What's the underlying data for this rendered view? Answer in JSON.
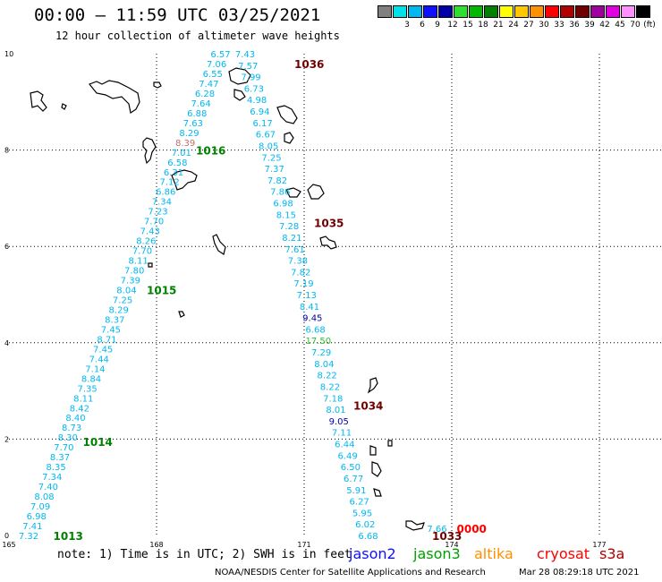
{
  "title": "00:00 – 11:59 UTC 03/25/2021",
  "subtitle": "12 hour collection of altimeter wave heights",
  "legend": {
    "unit": "(ft)",
    "bins": [
      {
        "label": "",
        "color": "#808080"
      },
      {
        "label": "3",
        "color": "#00e0e8"
      },
      {
        "label": "6",
        "color": "#00b8f0"
      },
      {
        "label": "9",
        "color": "#1010ff"
      },
      {
        "label": "12",
        "color": "#0000a8"
      },
      {
        "label": "15",
        "color": "#30e030"
      },
      {
        "label": "18",
        "color": "#00b800"
      },
      {
        "label": "21",
        "color": "#008000"
      },
      {
        "label": "24",
        "color": "#ffff00"
      },
      {
        "label": "27",
        "color": "#ffc800"
      },
      {
        "label": "30",
        "color": "#ff9000"
      },
      {
        "label": "33",
        "color": "#ff0000"
      },
      {
        "label": "36",
        "color": "#b00000"
      },
      {
        "label": "39",
        "color": "#700000"
      },
      {
        "label": "42",
        "color": "#a000a0"
      },
      {
        "label": "45",
        "color": "#e000e0"
      },
      {
        "label": "70",
        "color": "#ff90ff"
      },
      {
        "label": "",
        "color": "#000000"
      }
    ]
  },
  "chart_data": {
    "type": "scatter",
    "xlim": [
      165,
      179
    ],
    "ylim": [
      0,
      10
    ],
    "x_ticks": [
      "165",
      "168",
      "171",
      "174",
      "177"
    ],
    "y_ticks": [
      "0",
      "2",
      "4",
      "6",
      "8",
      "10"
    ],
    "tracks": [
      {
        "name": "track-west",
        "satellite": "jason3",
        "color": "#00b8f0",
        "x_start": 165.4,
        "y_start": 0.0,
        "x_end": 169.3,
        "y_end": 10.0,
        "swh_ft": [
          "7.32",
          "7.41",
          "6.98",
          "7.09",
          "8.08",
          "7.40",
          "7.34",
          "8.35",
          "8.37",
          "7.70",
          "8.30",
          "8.73",
          "8.40",
          "8.42",
          "8.11",
          "7.35",
          "8.84",
          "7.14",
          "7.44",
          "7.45",
          "8.71",
          "7.45",
          "8.37",
          "8.29",
          "7.25",
          "8.04",
          "7.39",
          "7.80",
          "8.11",
          "7.70",
          "8.26",
          "7.43",
          "7.70",
          "7.23",
          "7.34",
          "6.86",
          "7.12",
          "6.31",
          "6.58",
          "7.01",
          "8.39",
          "8.29",
          "7.63",
          "6.88",
          "7.64",
          "6.28",
          "7.47",
          "6.55",
          "7.06",
          "6.57"
        ],
        "highlight": {
          "index": 40,
          "color": "#c07070"
        }
      },
      {
        "name": "track-east",
        "satellite": "jason3",
        "color": "#00b8f0",
        "x_start": 169.8,
        "y_start": 10.0,
        "x_end": 172.3,
        "y_end": 0.0,
        "swh_ft": [
          "7.43",
          "7.57",
          "7.99",
          "6.73",
          "4.98",
          "6.94",
          "6.17",
          "6.67",
          "8.05",
          "7.25",
          "7.37",
          "7.82",
          "7.86",
          "6.98",
          "8.15",
          "7.28",
          "8.21",
          "7.61",
          "7.38",
          "7.82",
          "7.19",
          "7.13",
          "8.41",
          "9.45",
          "6.68",
          "17.50",
          "7.29",
          "8.04",
          "8.22",
          "8.22",
          "7.18",
          "8.01",
          "9.05",
          "7.11",
          "6.44",
          "6.49",
          "6.50",
          "6.77",
          "5.91",
          "6.27",
          "5.95",
          "6.02",
          "6.68"
        ],
        "special": {
          "23": "#0000a8",
          "25": "#30c030",
          "32": "#0000a8"
        }
      },
      {
        "name": "track-short",
        "satellite": "jason3",
        "color": "#00b8f0",
        "x_start": 173.7,
        "y_start": 0.15,
        "x_end": 174.0,
        "y_end": 0.15,
        "swh_ft": [
          "7.66"
        ]
      }
    ],
    "cycle_labels": [
      {
        "text": "1036",
        "x": 170.8,
        "y": 9.8,
        "color": "#700000"
      },
      {
        "text": "1016",
        "x": 168.8,
        "y": 8.0,
        "color": "#008000"
      },
      {
        "text": "1035",
        "x": 171.2,
        "y": 6.5,
        "color": "#700000"
      },
      {
        "text": "1015",
        "x": 167.8,
        "y": 5.1,
        "color": "#008000"
      },
      {
        "text": "1034",
        "x": 172.0,
        "y": 2.7,
        "color": "#700000"
      },
      {
        "text": "1014",
        "x": 166.5,
        "y": 1.95,
        "color": "#008000"
      },
      {
        "text": "1013",
        "x": 165.9,
        "y": 0.0,
        "color": "#008000"
      },
      {
        "text": "1033",
        "x": 173.6,
        "y": 0.0,
        "color": "#700000"
      },
      {
        "text": "0000",
        "x": 174.1,
        "y": 0.15,
        "color": "#ff0000"
      }
    ]
  },
  "note": "note: 1) Time is in UTC; 2) SWH is in feet",
  "satellites": [
    {
      "name": "jason2",
      "color": "#1010ff"
    },
    {
      "name": "jason3",
      "color": "#00a000"
    },
    {
      "name": "altika",
      "color": "#ff9000"
    },
    {
      "name": "cryosat",
      "color": "#ff0000"
    },
    {
      "name": "s3a",
      "color": "#b00000"
    }
  ],
  "footer": "NOAA/NESDIS Center for Satellite Applications and Research",
  "timestamp": "Mar 28 08:29:18 UTC 2021"
}
